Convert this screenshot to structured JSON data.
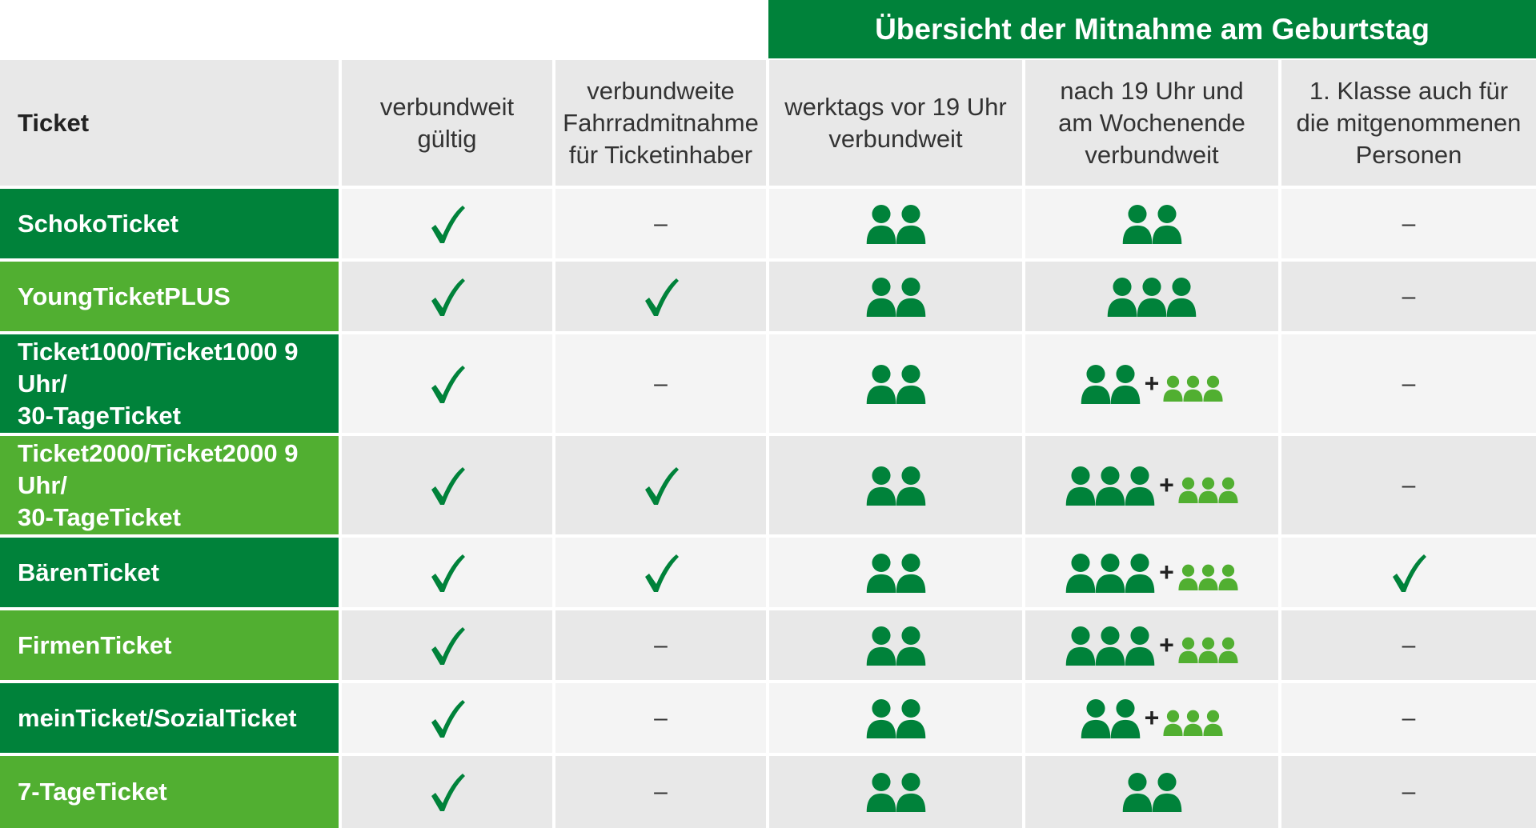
{
  "banner": "Übersicht der Mitnahme am Geburtstag",
  "headers": {
    "ticket": "Ticket",
    "c1": "verbundweit\ngültig",
    "c2": "verbundweite\nFahrradmitnahme\nfür Ticketinhaber",
    "c3": "werktags vor 19 Uhr\nverbundweit",
    "c4": "nach 19 Uhr und\nam Wochenende\nverbundweit",
    "c5": "1. Klasse auch für\ndie mitgenommenen\nPersonen"
  },
  "colors": {
    "dark_green": "#00823a",
    "light_green": "#51af31",
    "plus": "#222222"
  },
  "dash_symbol": "–",
  "check_icon": "check-icon",
  "person_icon": "person-icon",
  "rows": [
    {
      "name": "SchokoTicket",
      "verbundweit": true,
      "fahrrad": false,
      "werktags_persons": 2,
      "abends_persons": 2,
      "abends_kids": 0,
      "erste_klasse": false
    },
    {
      "name": "YoungTicketPLUS",
      "verbundweit": true,
      "fahrrad": true,
      "werktags_persons": 2,
      "abends_persons": 3,
      "abends_kids": 0,
      "erste_klasse": false
    },
    {
      "name": "Ticket1000/Ticket1000 9 Uhr/\n30-TageTicket",
      "verbundweit": true,
      "fahrrad": false,
      "werktags_persons": 2,
      "abends_persons": 2,
      "abends_kids": 3,
      "erste_klasse": false
    },
    {
      "name": "Ticket2000/Ticket2000 9 Uhr/\n30-TageTicket",
      "verbundweit": true,
      "fahrrad": true,
      "werktags_persons": 2,
      "abends_persons": 3,
      "abends_kids": 3,
      "erste_klasse": false
    },
    {
      "name": "BärenTicket",
      "verbundweit": true,
      "fahrrad": true,
      "werktags_persons": 2,
      "abends_persons": 3,
      "abends_kids": 3,
      "erste_klasse": true
    },
    {
      "name": "FirmenTicket",
      "verbundweit": true,
      "fahrrad": false,
      "werktags_persons": 2,
      "abends_persons": 3,
      "abends_kids": 3,
      "erste_klasse": false
    },
    {
      "name": "meinTicket/SozialTicket",
      "verbundweit": true,
      "fahrrad": false,
      "werktags_persons": 2,
      "abends_persons": 2,
      "abends_kids": 3,
      "erste_klasse": false
    },
    {
      "name": "7-TageTicket",
      "verbundweit": true,
      "fahrrad": false,
      "werktags_persons": 2,
      "abends_persons": 2,
      "abends_kids": 0,
      "erste_klasse": false
    }
  ]
}
